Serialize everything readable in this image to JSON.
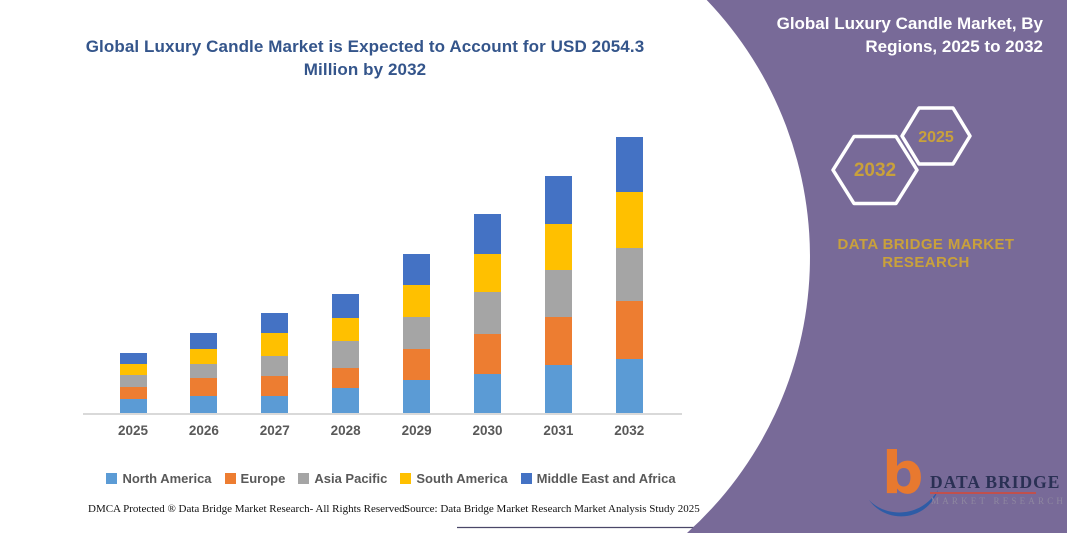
{
  "colors": {
    "panel_purple": "#786A98",
    "gold": "#C9A13B",
    "title_blue": "#34558B",
    "axis_gray": "#d9d9d9",
    "label_gray": "#595959"
  },
  "header": {
    "title": "Global Luxury Candle Market is Expected to Account for USD 2054.3 Million by 2032"
  },
  "panel": {
    "title": "Global Luxury Candle Market, By Regions, 2025 to 2032",
    "badges": [
      {
        "label": "2032"
      },
      {
        "label": "2025"
      }
    ],
    "brand_line1": "DATA BRIDGE MARKET",
    "brand_line2": "RESEARCH"
  },
  "logo": {
    "letter": "b",
    "wordmark": "DATA BRIDGE",
    "subtext": "MARKET RESEARCH"
  },
  "footer": {
    "left": "DMCA Protected ® Data Bridge Market Research-  All Rights Reserved.",
    "right": "Source: Data Bridge Market Research  Market Analysis Study 2025"
  },
  "chart_data": {
    "type": "bar",
    "stacked": true,
    "title": "Global Luxury Candle Market, By Regions, 2025 to 2032",
    "unit": "USD Million",
    "categories": [
      "2025",
      "2026",
      "2027",
      "2028",
      "2029",
      "2030",
      "2031",
      "2032"
    ],
    "series": [
      {
        "name": "North America",
        "color": "#5B9BD5",
        "values": [
          105,
          124,
          129,
          186,
          244,
          293,
          358,
          403
        ]
      },
      {
        "name": "Europe",
        "color": "#ED7D31",
        "values": [
          88,
          137,
          149,
          149,
          229,
          293,
          355,
          427
        ]
      },
      {
        "name": "Asia Pacific",
        "color": "#A5A5A5",
        "values": [
          87,
          104,
          149,
          199,
          238,
          313,
          350,
          397
        ]
      },
      {
        "name": "South America",
        "color": "#FFC000",
        "values": [
          87,
          112,
          169,
          169,
          238,
          281,
          340,
          413
        ]
      },
      {
        "name": "Middle East and Africa",
        "color": "#4472C4",
        "values": [
          80,
          119,
          149,
          179,
          229,
          298,
          360,
          414.3
        ]
      }
    ],
    "totals": [
      447,
      596,
      745,
      882,
      1178,
      1478,
      1763,
      2054.3
    ],
    "ylim": [
      0,
      2100
    ],
    "grid": false,
    "legend_position": "bottom",
    "annotation": "2032 total = USD 2054.3 Million"
  }
}
